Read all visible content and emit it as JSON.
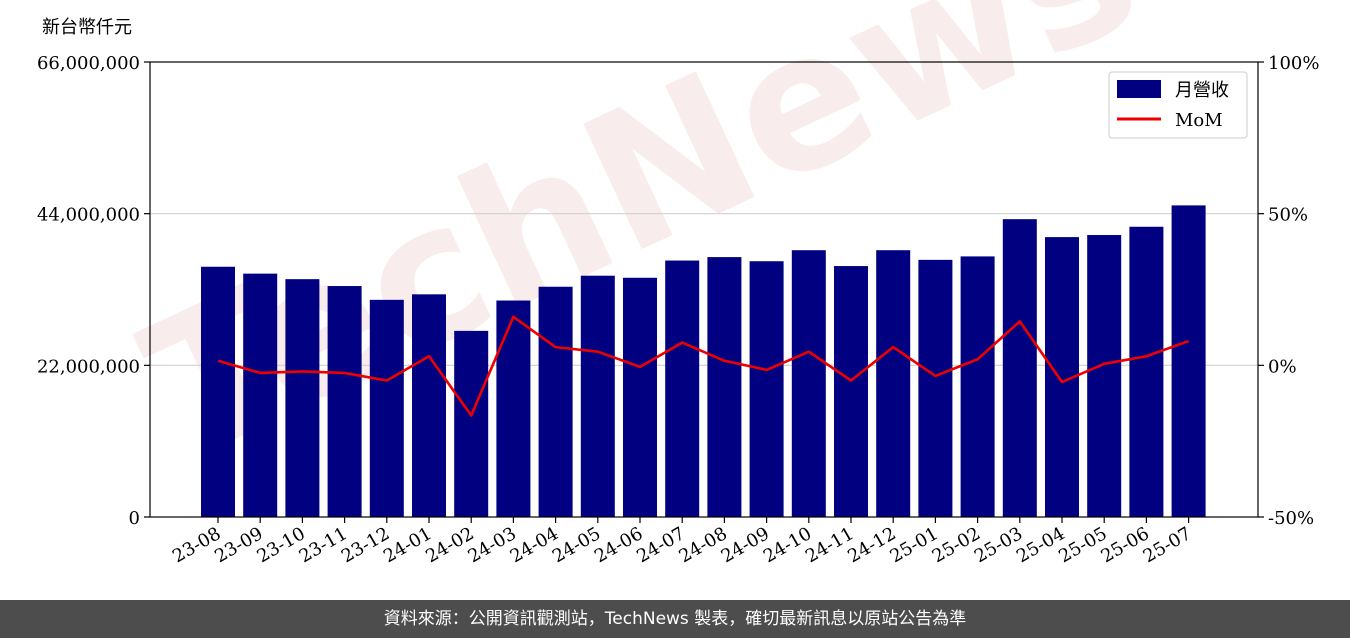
{
  "unit_label": "新台幣仟元",
  "watermark": "TechNews",
  "footer": "資料來源：公開資訊觀測站，TechNews 製表，確切最新訊息以原站公告為準",
  "colors": {
    "bar": "#000080",
    "line": "#ee0000",
    "footer_bg": "#4d4d4d"
  },
  "chart_data": {
    "type": "bar",
    "categories": [
      "23-08",
      "23-09",
      "23-10",
      "23-11",
      "23-12",
      "24-01",
      "24-02",
      "24-03",
      "24-04",
      "24-05",
      "24-06",
      "24-07",
      "24-08",
      "24-09",
      "24-10",
      "24-11",
      "24-12",
      "25-01",
      "25-02",
      "25-03",
      "25-04",
      "25-05",
      "25-06",
      "25-07"
    ],
    "series": [
      {
        "name": "月營收",
        "type": "bar",
        "axis": "left",
        "values": [
          36300000,
          35300000,
          34500000,
          33500000,
          31500000,
          32300000,
          27000000,
          31400000,
          33400000,
          35000000,
          34700000,
          37200000,
          37700000,
          37100000,
          38700000,
          36400000,
          38700000,
          37300000,
          37800000,
          43200000,
          40600000,
          40900000,
          42100000,
          45200000
        ]
      },
      {
        "name": "MoM",
        "type": "line",
        "axis": "right",
        "values": [
          1.5,
          -2.5,
          -2,
          -2.5,
          -5,
          3,
          -16.5,
          16,
          6,
          4.5,
          -0.5,
          7.5,
          1.5,
          -1.5,
          4.5,
          -5,
          6,
          -3.5,
          2,
          14.5,
          -5.5,
          0.5,
          3,
          8
        ]
      }
    ],
    "y_left": {
      "range": [
        0,
        66000000
      ],
      "ticks": [
        "0",
        "22,000,000",
        "44,000,000",
        "66,000,000"
      ],
      "tick_values": [
        0,
        22000000,
        44000000,
        66000000
      ]
    },
    "y_right": {
      "range": [
        -50,
        100
      ],
      "ticks": [
        "-50%",
        "0%",
        "50%",
        "100%"
      ],
      "tick_values": [
        -50,
        0,
        50,
        100
      ]
    },
    "grid": "horizontal",
    "legend_position": "top-right"
  }
}
